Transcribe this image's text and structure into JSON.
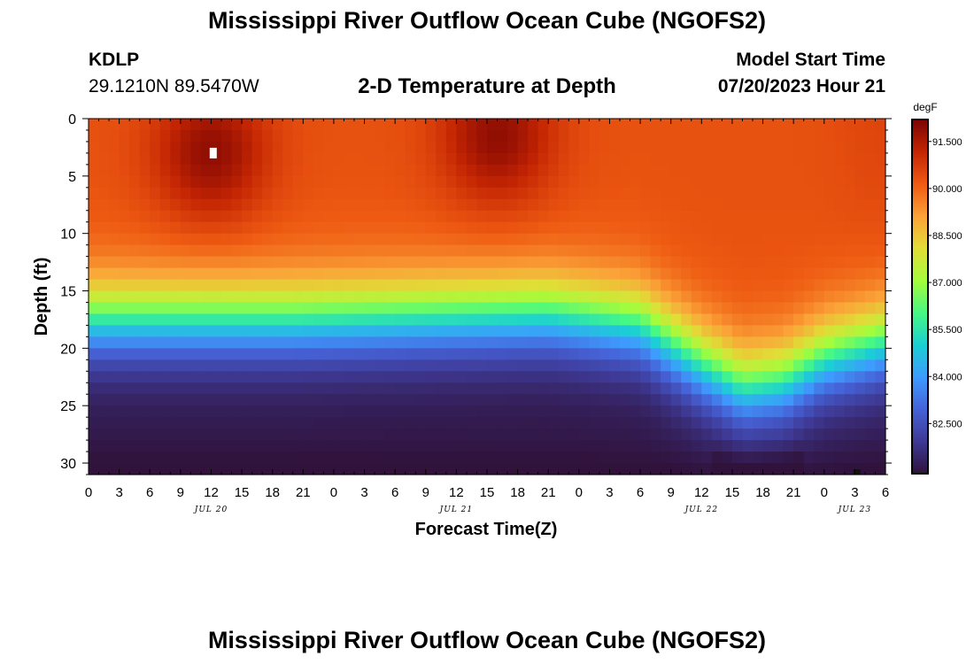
{
  "page": {
    "title": "Mississippi River Outflow Ocean Cube (NGOFS2)",
    "station_id": "KDLP",
    "station_coords": "29.1210N  89.5470W",
    "subtitle": "2-D Temperature at Depth",
    "model_start_label": "Model Start Time",
    "model_start_value": "07/20/2023 Hour 21",
    "footer_title": "Mississippi River Outflow Ocean Cube (NGOFS2)"
  },
  "chart_data": {
    "type": "heatmap",
    "title": "2-D Temperature at Depth",
    "xlabel": "Forecast Time(Z)",
    "ylabel": "Depth (ft)",
    "x_unit": "hours since 07/20 00Z",
    "xlim": [
      0,
      78
    ],
    "ylim": [
      0,
      31
    ],
    "y_inverted": true,
    "x_ticks": [
      {
        "hour": 0,
        "label": "0"
      },
      {
        "hour": 3,
        "label": "3"
      },
      {
        "hour": 6,
        "label": "6"
      },
      {
        "hour": 9,
        "label": "9"
      },
      {
        "hour": 12,
        "label": "12"
      },
      {
        "hour": 15,
        "label": "15"
      },
      {
        "hour": 18,
        "label": "18"
      },
      {
        "hour": 21,
        "label": "21"
      },
      {
        "hour": 24,
        "label": "0"
      },
      {
        "hour": 27,
        "label": "3"
      },
      {
        "hour": 30,
        "label": "6"
      },
      {
        "hour": 33,
        "label": "9"
      },
      {
        "hour": 36,
        "label": "12"
      },
      {
        "hour": 39,
        "label": "15"
      },
      {
        "hour": 42,
        "label": "18"
      },
      {
        "hour": 45,
        "label": "21"
      },
      {
        "hour": 48,
        "label": "0"
      },
      {
        "hour": 51,
        "label": "3"
      },
      {
        "hour": 54,
        "label": "6"
      },
      {
        "hour": 57,
        "label": "9"
      },
      {
        "hour": 60,
        "label": "12"
      },
      {
        "hour": 63,
        "label": "15"
      },
      {
        "hour": 66,
        "label": "18"
      },
      {
        "hour": 69,
        "label": "21"
      },
      {
        "hour": 72,
        "label": "0"
      },
      {
        "hour": 75,
        "label": "3"
      },
      {
        "hour": 78,
        "label": "6"
      }
    ],
    "date_labels": [
      {
        "hour": 12,
        "label": "JUL 20"
      },
      {
        "hour": 36,
        "label": "JUL 21"
      },
      {
        "hour": 60,
        "label": "JUL 22"
      },
      {
        "hour": 75,
        "label": "JUL 23"
      }
    ],
    "y_ticks": [
      0,
      5,
      10,
      15,
      20,
      25,
      30
    ],
    "colorbar": {
      "unit": "degF",
      "min": 80.9,
      "max": 92.2,
      "ticks": [
        {
          "value": 91.5,
          "label": "91.500"
        },
        {
          "value": 90.0,
          "label": "90.000"
        },
        {
          "value": 88.5,
          "label": "88.500"
        },
        {
          "value": 87.0,
          "label": "87.000"
        },
        {
          "value": 85.5,
          "label": "85.500"
        },
        {
          "value": 84.0,
          "label": "84.000"
        },
        {
          "value": 82.5,
          "label": "82.500"
        }
      ],
      "colors": [
        "#30123b",
        "#3e3994",
        "#4662d7",
        "#3e9bfe",
        "#1bcfd4",
        "#46f884",
        "#a4fc3c",
        "#e1dd37",
        "#fba238",
        "#ee5a12",
        "#c42503",
        "#7a0403"
      ]
    },
    "field": {
      "surface_base_degF": 90.3,
      "thermocline_depth_ft_by_hour": [
        [
          0,
          17.5
        ],
        [
          20,
          17.5
        ],
        [
          45,
          17.0
        ],
        [
          54,
          18.0
        ],
        [
          60,
          21.5
        ],
        [
          64,
          23.5
        ],
        [
          68,
          23.0
        ],
        [
          72,
          21.0
        ],
        [
          78,
          19.5
        ]
      ],
      "warm_cores": [
        {
          "hour": 12,
          "depth_ft": 3,
          "peak_degF": 91.9
        },
        {
          "hour": 40,
          "depth_ft": 1.5,
          "peak_degF": 91.9
        }
      ],
      "bottom_degF": 81.0
    },
    "markers": [
      {
        "type": "max",
        "hour": 12.2,
        "depth_ft": 3
      },
      {
        "type": "min",
        "hour": 75.2,
        "depth_ft": 31
      }
    ]
  }
}
